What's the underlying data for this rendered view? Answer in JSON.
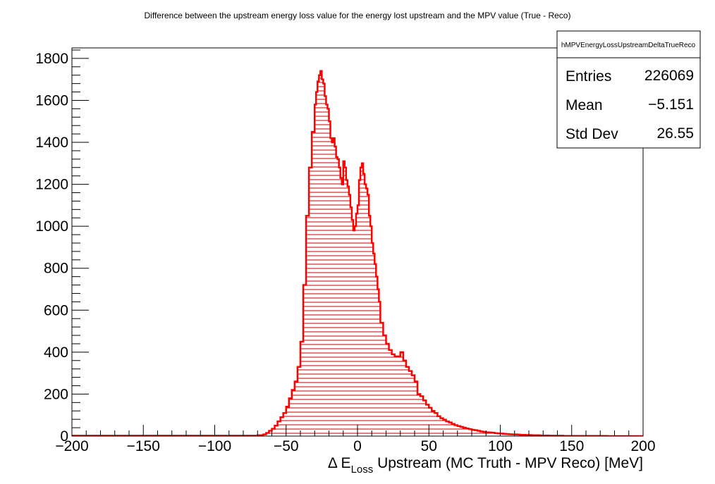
{
  "chart_data": {
    "type": "bar",
    "title": "Difference between the upstream energy loss value for the energy lost upstream and the MPV value (True - Reco)",
    "xlabel_prefix": "Δ E",
    "xlabel_sub": "Loss",
    "xlabel_suffix": " Upstream (MC Truth - MPV Reco) [MeV]",
    "xlim": [
      -200,
      200
    ],
    "ylim": [
      0,
      1850
    ],
    "x_ticks": [
      -200,
      -150,
      -100,
      -50,
      0,
      50,
      100,
      150,
      200
    ],
    "x_tick_labels": [
      "−200",
      "−150",
      "−100",
      "−50",
      "0",
      "50",
      "100",
      "150",
      "200"
    ],
    "y_ticks": [
      0,
      200,
      400,
      600,
      800,
      1000,
      1200,
      1400,
      1600,
      1800
    ],
    "y_tick_labels": [
      "0",
      "200",
      "400",
      "600",
      "800",
      "1000",
      "1200",
      "1400",
      "1600",
      "1800"
    ],
    "line_color": "#ff0000",
    "fill_style": "horizontal-hatch",
    "series": [
      {
        "x": [
          -200,
          -70,
          -66,
          -64,
          -62,
          -60,
          -58,
          -56,
          -54,
          -52,
          -50,
          -48,
          -46,
          -44,
          -42,
          -40,
          -38,
          -36,
          -34,
          -32,
          -30,
          -29,
          -28,
          -27,
          -26,
          -25,
          -24,
          -23,
          -22,
          -21,
          -20,
          -19,
          -18,
          -17,
          -16,
          -15,
          -14,
          -13,
          -12,
          -11,
          -10,
          -9,
          -8,
          -7,
          -6,
          -5,
          -4,
          -3,
          -2,
          -1,
          0,
          1,
          2,
          3,
          4,
          5,
          6,
          7,
          8,
          9,
          10,
          11,
          12,
          13,
          14,
          15,
          16,
          18,
          20,
          22,
          24,
          26,
          28,
          30,
          32,
          34,
          36,
          38,
          40,
          42,
          44,
          46,
          48,
          50,
          52,
          54,
          56,
          58,
          60,
          62,
          64,
          66,
          68,
          70,
          72,
          74,
          76,
          78,
          80,
          82,
          84,
          86,
          88,
          90,
          92,
          94,
          96,
          98,
          100,
          102,
          104,
          106,
          108,
          110,
          112,
          114,
          116,
          118,
          120,
          122,
          124,
          126,
          128,
          130,
          132,
          134,
          136,
          138,
          140,
          142,
          144,
          146,
          148,
          150,
          155,
          160,
          165,
          170,
          175,
          180,
          185,
          190,
          195,
          200
        ],
        "y": [
          2,
          4,
          8,
          15,
          25,
          35,
          50,
          70,
          90,
          110,
          140,
          180,
          220,
          260,
          330,
          450,
          720,
          1050,
          1280,
          1450,
          1580,
          1640,
          1690,
          1720,
          1740,
          1700,
          1680,
          1620,
          1580,
          1560,
          1500,
          1420,
          1400,
          1420,
          1380,
          1330,
          1320,
          1280,
          1230,
          1200,
          1310,
          1280,
          1220,
          1190,
          1150,
          1090,
          1030,
          980,
          1000,
          1060,
          1100,
          1220,
          1280,
          1300,
          1250,
          1200,
          1180,
          1150,
          1050,
          1000,
          920,
          870,
          820,
          760,
          700,
          640,
          540,
          480,
          440,
          410,
          390,
          380,
          380,
          400,
          360,
          330,
          310,
          290,
          260,
          200,
          190,
          170,
          150,
          135,
          120,
          110,
          95,
          85,
          78,
          70,
          65,
          58,
          52,
          48,
          44,
          40,
          36,
          33,
          30,
          28,
          25,
          22,
          20,
          18,
          17,
          16,
          14,
          13,
          12,
          11,
          10,
          9,
          8,
          8,
          7,
          6,
          6,
          5,
          5,
          4,
          4,
          4,
          3,
          3,
          3,
          2,
          2,
          2,
          2,
          2,
          1,
          1,
          1,
          1,
          1,
          1,
          1,
          1,
          0,
          0,
          0,
          0,
          0,
          0
        ]
      }
    ]
  },
  "stats": {
    "name": "hMPVEnergyLossUpstreamDeltaTrueReco",
    "rows": [
      {
        "label": "Entries",
        "value": "226069"
      },
      {
        "label": "Mean",
        "value": "−5.151"
      },
      {
        "label": "Std Dev",
        "value": "26.55"
      }
    ]
  }
}
